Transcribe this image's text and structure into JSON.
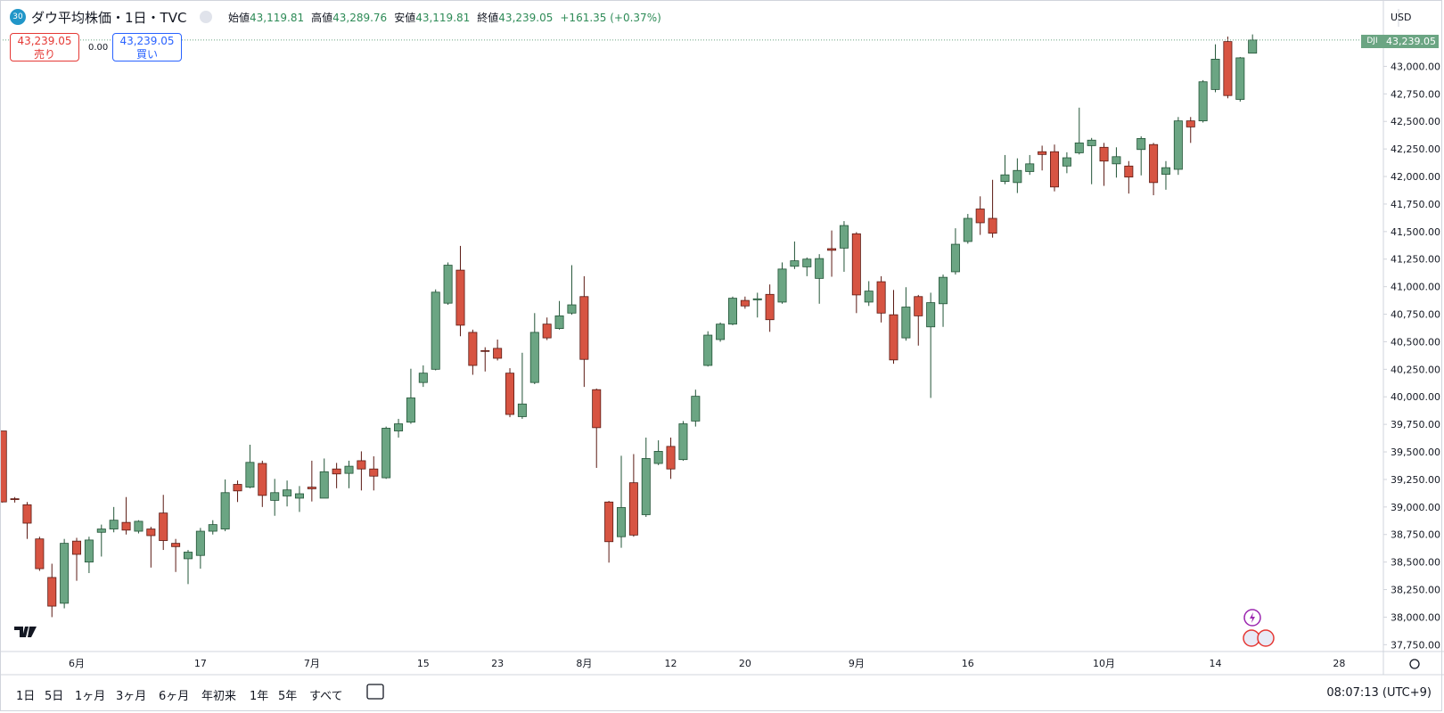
{
  "header": {
    "badge": "30",
    "symbol": "ダウ平均株価・1日・TVC",
    "fields": [
      {
        "label": "始値",
        "value": "43,119.81"
      },
      {
        "label": "高値",
        "value": "43,289.76"
      },
      {
        "label": "安値",
        "value": "43,119.81"
      },
      {
        "label": "終値",
        "value": "43,239.05"
      }
    ],
    "change": "+161.35 (+0.37%)"
  },
  "trade": {
    "sell_price": "43,239.05",
    "sell_label": "売り",
    "spread": "0.00",
    "buy_price": "43,239.05",
    "buy_label": "買い"
  },
  "currency": "USD",
  "price_tag": {
    "symbol": "DJI",
    "price": "43,239.05"
  },
  "toolbar": {
    "ranges": [
      "1日",
      "5日",
      "1ヶ月",
      "3ヶ月",
      "6ヶ月",
      "年初来",
      "1年",
      "5年",
      "すべて"
    ],
    "time": "08:07:13 (UTC+9)"
  },
  "chart_data": {
    "type": "candlestick",
    "up_color": "#6ba583",
    "down_color": "#d75442",
    "up_border": "#225437",
    "down_border": "#5b1a13",
    "grid": false,
    "ylim": [
      37688,
      43578
    ],
    "yticks": [
      {
        "value": 37750,
        "label": "37,750.00"
      },
      {
        "value": 38000,
        "label": "38,000.00"
      },
      {
        "value": 38250,
        "label": "38,250.00"
      },
      {
        "value": 38500,
        "label": "38,500.00"
      },
      {
        "value": 38750,
        "label": "38,750.00"
      },
      {
        "value": 39000,
        "label": "39,000.00"
      },
      {
        "value": 39250,
        "label": "39,250.00"
      },
      {
        "value": 39500,
        "label": "39,500.00"
      },
      {
        "value": 39750,
        "label": "39,750.00"
      },
      {
        "value": 40000,
        "label": "40,000.00"
      },
      {
        "value": 40250,
        "label": "40,250.00"
      },
      {
        "value": 40500,
        "label": "40,500.00"
      },
      {
        "value": 40750,
        "label": "40,750.00"
      },
      {
        "value": 41000,
        "label": "41,000.00"
      },
      {
        "value": 41250,
        "label": "41,250.00"
      },
      {
        "value": 41500,
        "label": "41,500.00"
      },
      {
        "value": 41750,
        "label": "41,750.00"
      },
      {
        "value": 42000,
        "label": "42,000.00"
      },
      {
        "value": 42250,
        "label": "42,250.00"
      },
      {
        "value": 42500,
        "label": "42,500.00"
      },
      {
        "value": 42750,
        "label": "42,750.00"
      },
      {
        "value": 43000,
        "label": "43,000.00"
      }
    ],
    "categories": [
      null,
      null,
      null,
      null,
      null,
      null,
      "6月",
      null,
      null,
      null,
      null,
      null,
      null,
      null,
      null,
      null,
      "17",
      null,
      null,
      null,
      null,
      null,
      null,
      null,
      null,
      "7月",
      null,
      null,
      null,
      null,
      null,
      null,
      null,
      null,
      "15",
      null,
      null,
      null,
      null,
      null,
      "23",
      null,
      null,
      null,
      null,
      null,
      null,
      "8月",
      null,
      null,
      null,
      null,
      null,
      null,
      "12",
      null,
      null,
      null,
      null,
      null,
      "20",
      null,
      null,
      null,
      null,
      null,
      null,
      null,
      null,
      "9月",
      null,
      null,
      null,
      null,
      null,
      null,
      null,
      null,
      "16",
      null,
      null,
      null,
      null,
      null,
      null,
      null,
      null,
      null,
      null,
      "10月",
      null,
      null,
      null,
      null,
      null,
      null,
      null,
      null,
      "14",
      null,
      null,
      null,
      null,
      null,
      null,
      null,
      null,
      null,
      "28"
    ],
    "open": [
      39690,
      39075,
      39020,
      38710,
      38360,
      38126,
      38690,
      38500,
      38770,
      38800,
      38860,
      38780,
      38800,
      38945,
      38670,
      38530,
      38560,
      38780,
      38800,
      39205,
      39180,
      39395,
      39060,
      39100,
      39080,
      39180,
      39080,
      39345,
      39305,
      39420,
      39345,
      39265,
      39690,
      39770,
      40130,
      40250,
      40850,
      41150,
      40585,
      40420,
      40440,
      40215,
      39820,
      40130,
      40660,
      40620,
      40760,
      40910,
      40065,
      39045,
      38730,
      39220,
      38930,
      39395,
      39550,
      39430,
      39780,
      40285,
      40520,
      40660,
      40875,
      40880,
      40930,
      40860,
      41185,
      41180,
      41075,
      41345,
      41350,
      41480,
      40860,
      41045,
      40745,
      40535,
      40910,
      40635,
      40845,
      41135,
      41410,
      41705,
      41620,
      41955,
      41945,
      42045,
      42225,
      42225,
      42095,
      42215,
      42280,
      42265,
      42115,
      42095,
      42245,
      42290,
      42020,
      42065,
      42505,
      42505,
      42790,
      43225,
      42700,
      43119.81,
      null,
      null,
      null,
      null,
      null,
      null,
      null
    ],
    "high": [
      39690,
      39090,
      39045,
      38730,
      38485,
      38710,
      38720,
      38730,
      38840,
      39000,
      39090,
      38880,
      38820,
      39110,
      38710,
      38610,
      38810,
      38880,
      39250,
      39240,
      39565,
      39420,
      39255,
      39240,
      39190,
      39420,
      39440,
      39400,
      39420,
      39505,
      39460,
      39730,
      39800,
      40255,
      40285,
      40975,
      41220,
      41370,
      40610,
      40450,
      40520,
      40260,
      40400,
      40760,
      40720,
      40870,
      41195,
      41095,
      40075,
      39055,
      39465,
      39480,
      39630,
      39605,
      39630,
      39780,
      40065,
      40595,
      40675,
      40910,
      40910,
      40945,
      41020,
      41220,
      41410,
      41265,
      41295,
      41510,
      41595,
      41495,
      41050,
      41095,
      40970,
      40995,
      40925,
      40945,
      41110,
      41530,
      41660,
      41820,
      41970,
      42195,
      42165,
      42195,
      42280,
      42290,
      42220,
      42625,
      42350,
      42305,
      42265,
      42140,
      42365,
      42305,
      42140,
      42540,
      42540,
      42875,
      43200,
      43270,
      43085,
      43289.76,
      null,
      null,
      null,
      null,
      null,
      null,
      null
    ],
    "low": [
      39040,
      39040,
      38710,
      38420,
      38000,
      38080,
      38330,
      38400,
      38550,
      38770,
      38750,
      38760,
      38450,
      38610,
      38410,
      38300,
      38440,
      38750,
      38780,
      39045,
      39170,
      39000,
      38920,
      39005,
      38955,
      39050,
      39080,
      39170,
      39170,
      39150,
      39150,
      39255,
      39630,
      39755,
      40090,
      40240,
      40835,
      40550,
      40200,
      40230,
      40330,
      39815,
      39800,
      40115,
      40515,
      40610,
      40745,
      40090,
      39355,
      38495,
      38630,
      38730,
      38910,
      39380,
      39255,
      39420,
      39730,
      40275,
      40500,
      40650,
      40800,
      40720,
      40590,
      40845,
      41160,
      41095,
      40845,
      41090,
      41135,
      40760,
      40825,
      40675,
      40300,
      40510,
      40465,
      39990,
      40635,
      41110,
      41390,
      41470,
      41445,
      41930,
      41850,
      42015,
      42055,
      41865,
      42030,
      42200,
      41930,
      41915,
      41990,
      41845,
      42010,
      41830,
      41880,
      42015,
      42305,
      42490,
      42765,
      42710,
      42680,
      43119.81,
      null,
      null,
      null,
      null,
      null,
      null,
      null
    ],
    "close": [
      39046,
      39070,
      38853,
      38440,
      38100,
      38670,
      38570,
      38700,
      38800,
      38880,
      38790,
      38870,
      38740,
      38695,
      38640,
      38590,
      38780,
      38840,
      39130,
      39146,
      39405,
      39105,
      39130,
      39155,
      39120,
      39165,
      39320,
      39300,
      39370,
      39345,
      39280,
      39715,
      39755,
      39990,
      40215,
      40950,
      41195,
      40650,
      40285,
      40415,
      40350,
      39840,
      39935,
      40585,
      40535,
      40735,
      40835,
      40340,
      39720,
      38685,
      38995,
      38745,
      39440,
      39505,
      39345,
      39755,
      40005,
      40560,
      40660,
      40895,
      40825,
      40890,
      40700,
      41160,
      41235,
      41250,
      41255,
      41330,
      41555,
      40925,
      40960,
      40760,
      40335,
      40815,
      40735,
      40855,
      41085,
      41385,
      41620,
      41580,
      41485,
      42015,
      42055,
      42115,
      42200,
      41905,
      42170,
      42305,
      42330,
      42140,
      42180,
      41995,
      42345,
      41945,
      42080,
      42505,
      42450,
      42860,
      43065,
      42735,
      43077,
      43239.05,
      null,
      null,
      null,
      null,
      null,
      null,
      null
    ]
  }
}
